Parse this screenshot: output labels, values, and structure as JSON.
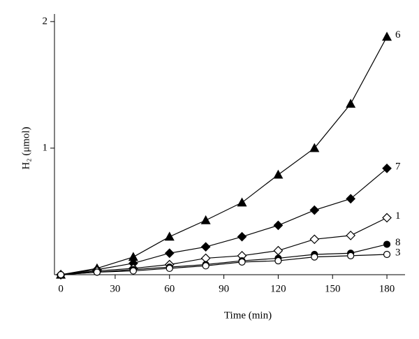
{
  "chart_data": {
    "type": "line",
    "x_label": "Time (min)",
    "y_label": "H₂ (μmol)",
    "x": [
      0,
      20,
      40,
      60,
      80,
      100,
      120,
      140,
      160,
      180
    ],
    "series": [
      {
        "name": "6",
        "color": "#000000",
        "marker": "triangle",
        "filled": true,
        "values": [
          0,
          0.05,
          0.14,
          0.3,
          0.43,
          0.57,
          0.79,
          1.0,
          1.35,
          1.88
        ]
      },
      {
        "name": "7",
        "color": "#000000",
        "marker": "diamond",
        "filled": true,
        "values": [
          0,
          0.04,
          0.09,
          0.17,
          0.22,
          0.3,
          0.39,
          0.51,
          0.6,
          0.84
        ]
      },
      {
        "name": "1",
        "color": "#000000",
        "marker": "diamond",
        "filled": false,
        "values": [
          0,
          0.03,
          0.05,
          0.08,
          0.13,
          0.15,
          0.19,
          0.28,
          0.31,
          0.45
        ]
      },
      {
        "name": "8",
        "color": "#000000",
        "marker": "circle",
        "filled": true,
        "values": [
          0,
          0.02,
          0.04,
          0.06,
          0.08,
          0.11,
          0.13,
          0.16,
          0.17,
          0.24
        ]
      },
      {
        "name": "3",
        "color": "#000000",
        "marker": "circle",
        "filled": false,
        "values": [
          0,
          0.02,
          0.03,
          0.05,
          0.07,
          0.1,
          0.11,
          0.14,
          0.15,
          0.16
        ]
      }
    ],
    "xlim": [
      -3.5,
      190
    ],
    "ylim": [
      0,
      2.06
    ],
    "xticks": [
      0,
      30,
      60,
      90,
      120,
      150,
      180
    ],
    "yticks": [
      1,
      2
    ],
    "grid": false
  }
}
